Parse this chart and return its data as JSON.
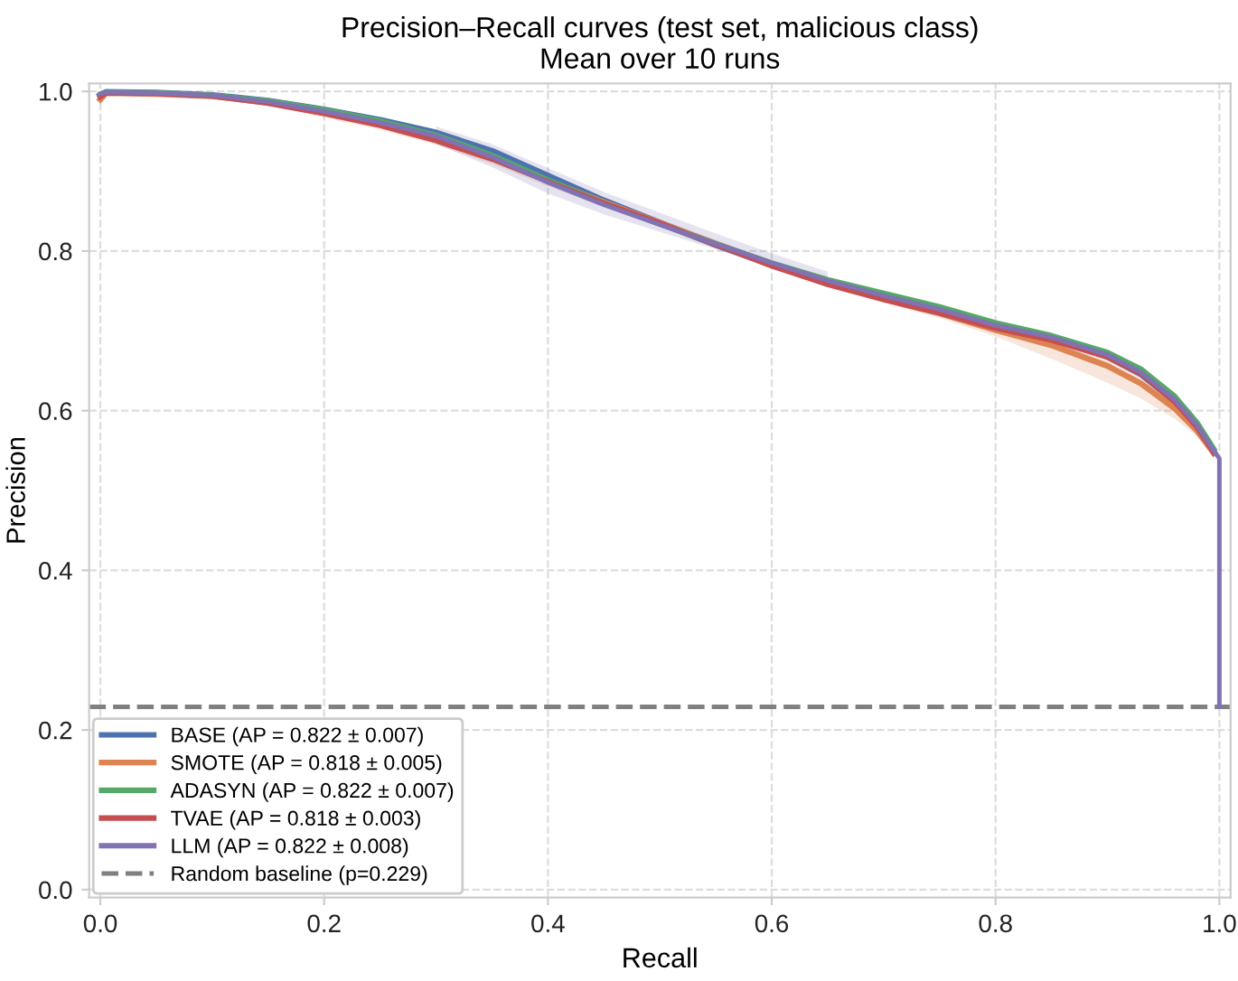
{
  "chart_data": {
    "type": "line",
    "title": "Precision–Recall curves (test set, malicious class)",
    "subtitle": "Mean over 10 runs",
    "xlabel": "Recall",
    "ylabel": "Precision",
    "x": [
      0,
      0.005,
      0.05,
      0.1,
      0.15,
      0.2,
      0.25,
      0.3,
      0.35,
      0.4,
      0.45,
      0.5,
      0.55,
      0.6,
      0.65,
      0.7,
      0.75,
      0.8,
      0.85,
      0.9,
      0.93,
      0.96,
      0.98,
      0.995,
      1.0,
      1.0
    ],
    "series": [
      {
        "name": "BASE (AP = 0.822 ± 0.007)",
        "color": "#4c72b0",
        "values": [
          0.995,
          0.999,
          0.998,
          0.995,
          0.988,
          0.977,
          0.964,
          0.948,
          0.925,
          0.894,
          0.863,
          0.835,
          0.808,
          0.783,
          0.761,
          0.742,
          0.725,
          0.706,
          0.69,
          0.668,
          0.646,
          0.612,
          0.58,
          0.548,
          null,
          null
        ]
      },
      {
        "name": "SMOTE (AP = 0.818 ± 0.005)",
        "color": "#dd8452",
        "values": [
          0.99,
          0.998,
          0.997,
          0.994,
          0.986,
          0.973,
          0.959,
          0.941,
          0.917,
          0.888,
          0.861,
          0.835,
          0.809,
          0.783,
          0.76,
          0.74,
          0.722,
          0.701,
          0.682,
          0.656,
          0.634,
          0.603,
          0.575,
          0.547,
          null,
          null
        ],
        "lower": [
          0.985,
          0.996,
          0.995,
          0.991,
          0.982,
          0.967,
          0.952,
          0.933,
          0.909,
          0.881,
          0.855,
          0.83,
          0.804,
          0.778,
          0.755,
          0.735,
          0.716,
          0.693,
          0.665,
          0.635,
          0.615,
          0.59,
          0.568,
          0.544,
          null,
          null
        ],
        "upper": [
          0.995,
          1.0,
          0.999,
          0.997,
          0.99,
          0.979,
          0.966,
          0.948,
          0.924,
          0.895,
          0.867,
          0.84,
          0.814,
          0.788,
          0.765,
          0.745,
          0.728,
          0.708,
          0.692,
          0.668,
          0.645,
          0.612,
          0.582,
          0.55,
          null,
          null
        ]
      },
      {
        "name": "ADASYN (AP = 0.822 ± 0.007)",
        "color": "#55a868",
        "values": [
          0.996,
          0.999,
          0.998,
          0.995,
          0.988,
          0.977,
          0.963,
          0.945,
          0.92,
          0.889,
          0.86,
          0.834,
          0.809,
          0.785,
          0.764,
          0.747,
          0.73,
          0.71,
          0.694,
          0.673,
          0.652,
          0.618,
          0.585,
          0.552,
          null,
          null
        ]
      },
      {
        "name": "TVAE (AP = 0.818 ± 0.003)",
        "color": "#c44e52",
        "values": [
          0.993,
          0.998,
          0.997,
          0.994,
          0.985,
          0.972,
          0.957,
          0.938,
          0.915,
          0.887,
          0.86,
          0.835,
          0.808,
          0.781,
          0.758,
          0.739,
          0.722,
          0.703,
          0.688,
          0.667,
          0.646,
          0.611,
          0.579,
          0.547,
          null,
          null
        ]
      },
      {
        "name": "LLM (AP = 0.822 ± 0.008)",
        "color": "#8172b3",
        "values": [
          0.997,
          0.999,
          0.998,
          0.995,
          0.987,
          0.975,
          0.961,
          0.944,
          0.918,
          0.886,
          0.858,
          0.833,
          0.809,
          0.785,
          0.763,
          0.744,
          0.727,
          0.707,
          0.692,
          0.67,
          0.648,
          0.614,
          0.582,
          0.55,
          0.54,
          0.229
        ],
        "lower": [
          null,
          null,
          null,
          null,
          null,
          null,
          null,
          0.934,
          0.905,
          0.872,
          0.846,
          0.824,
          0.802,
          0.779,
          0.758,
          null,
          null,
          null,
          null,
          null,
          null,
          null,
          null,
          null,
          null,
          null
        ],
        "upper": [
          null,
          null,
          null,
          null,
          null,
          null,
          null,
          0.956,
          0.934,
          0.904,
          0.874,
          0.848,
          0.822,
          0.797,
          0.774,
          null,
          null,
          null,
          null,
          null,
          null,
          null,
          null,
          null,
          null,
          null
        ]
      }
    ],
    "ref_lines": [
      {
        "axis": "y",
        "value": 0.229,
        "label": "Random baseline (p=0.229)",
        "color": "#808080",
        "line_style": "dashed"
      }
    ],
    "xlim": [
      -0.01,
      1.01
    ],
    "ylim": [
      -0.01,
      1.01
    ],
    "xticks": [
      {
        "value": 0,
        "label": "0.0"
      },
      0.2,
      0.4,
      0.6,
      0.8,
      {
        "value": 1,
        "label": "1.0"
      }
    ],
    "yticks": [
      {
        "value": 0,
        "label": "0.0"
      },
      0.2,
      0.4,
      0.6,
      0.8,
      {
        "value": 1,
        "label": "1.0"
      }
    ],
    "grid": true,
    "legend": "lower left",
    "line_style": "solid",
    "marker": "none"
  }
}
